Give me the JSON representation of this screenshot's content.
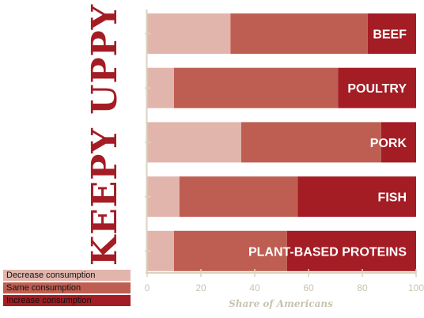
{
  "chart_data": {
    "type": "bar",
    "stacked": true,
    "orientation": "horizontal",
    "title": "KEEPY UPPY",
    "xlabel": "Share of Americans",
    "xlim": [
      0,
      100
    ],
    "xticks": [
      "0",
      "20",
      "40",
      "60",
      "80",
      "100"
    ],
    "categories": [
      "BEEF",
      "POULTRY",
      "PORK",
      "FISH",
      "PLANT-BASED PROTEINS"
    ],
    "series": [
      {
        "name": "Decrease consumption",
        "color": "#e2b5ac",
        "values": [
          31,
          10,
          35,
          12,
          10
        ]
      },
      {
        "name": "Same consumption",
        "color": "#be5e52",
        "values": [
          51,
          61,
          52,
          44,
          42
        ]
      },
      {
        "name": "Increase consumption",
        "color": "#a41c24",
        "values": [
          18,
          29,
          13,
          44,
          48
        ]
      }
    ],
    "legend_position": "bottom-left",
    "grid": false
  }
}
